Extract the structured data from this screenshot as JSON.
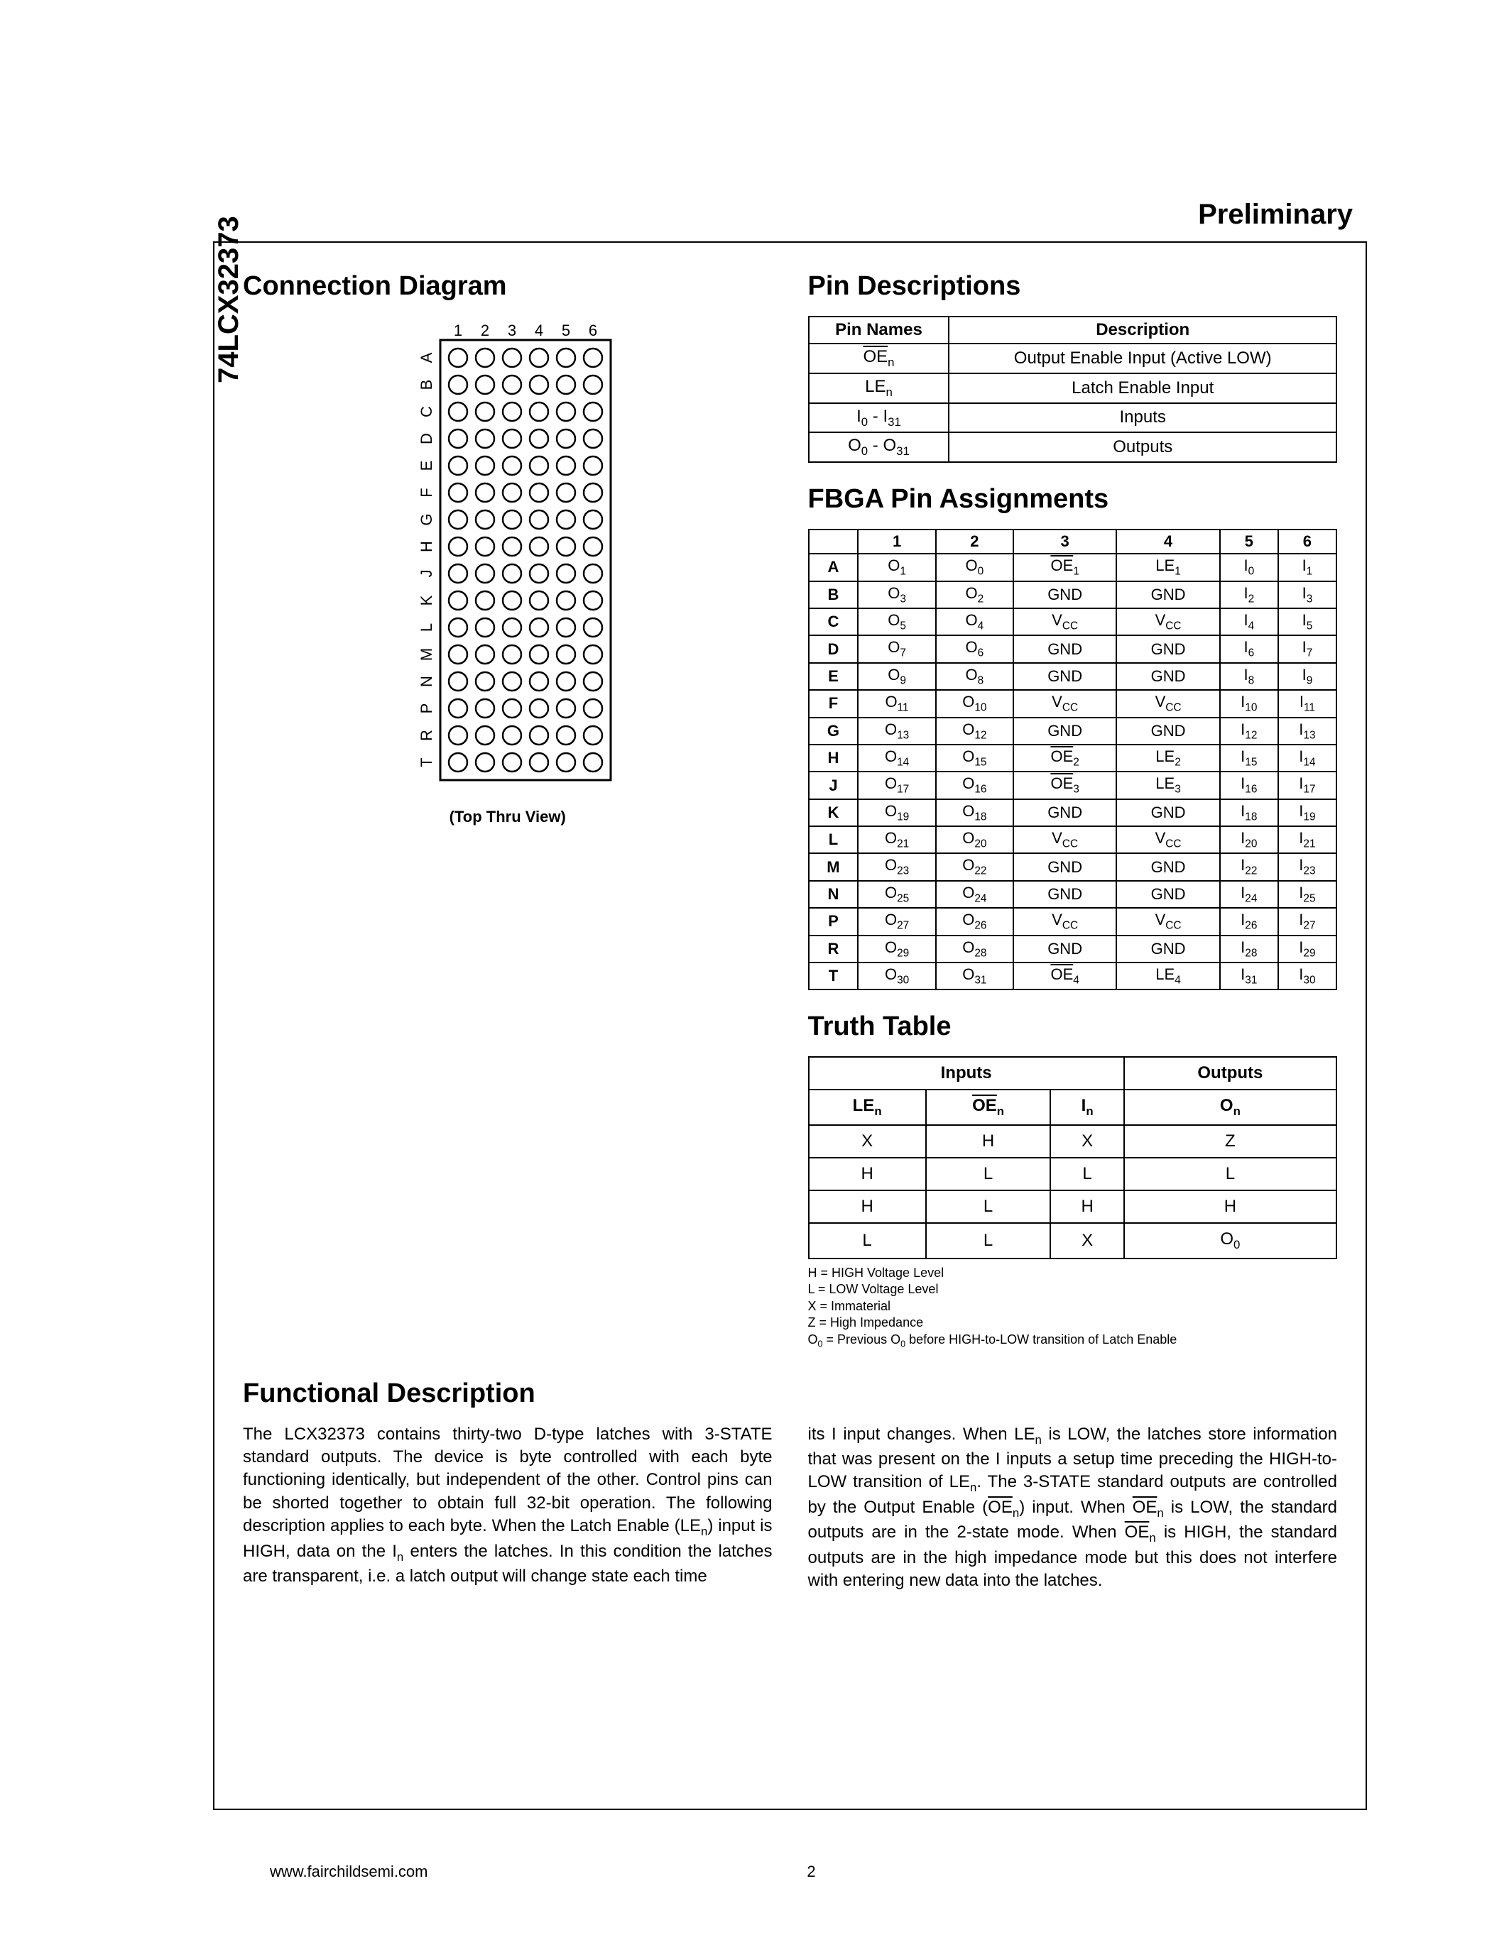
{
  "page": {
    "preliminary": "Preliminary",
    "part_number": "74LCX32373",
    "footer_url": "www.fairchildsemi.com",
    "page_number": "2"
  },
  "sections": {
    "connection": "Connection Diagram",
    "pin_desc": "Pin Descriptions",
    "fbga": "FBGA Pin Assignments",
    "truth": "Truth Table",
    "func": "Functional Description"
  },
  "connection_diagram": {
    "cols": [
      "1",
      "2",
      "3",
      "4",
      "5",
      "6"
    ],
    "rows": [
      "A",
      "B",
      "C",
      "D",
      "E",
      "F",
      "G",
      "H",
      "J",
      "K",
      "L",
      "M",
      "N",
      "P",
      "R",
      "T"
    ],
    "caption": "(Top Thru View)",
    "circle_radius": 13,
    "col_spacing": 38,
    "row_spacing": 38,
    "stroke_color": "#000000"
  },
  "pin_descriptions": {
    "headers": [
      "Pin Names",
      "Description"
    ],
    "rows": [
      {
        "name_html": "<span class='ovl'>OE</span><sub>n</sub>",
        "desc": "Output Enable Input (Active LOW)"
      },
      {
        "name_html": "LE<sub>n</sub>",
        "desc": "Latch Enable Input"
      },
      {
        "name_html": "I<sub>0</sub> - I<sub>31</sub>",
        "desc": "Inputs"
      },
      {
        "name_html": "O<sub>0</sub> - O<sub>31</sub>",
        "desc": "Outputs"
      }
    ]
  },
  "fbga": {
    "col_headers": [
      "",
      "1",
      "2",
      "3",
      "4",
      "5",
      "6"
    ],
    "rows": [
      {
        "r": "A",
        "c": [
          "O<sub>1</sub>",
          "O<sub>0</sub>",
          "<span class='ovl'>OE</span><sub>1</sub>",
          "LE<sub>1</sub>",
          "I<sub>0</sub>",
          "I<sub>1</sub>"
        ]
      },
      {
        "r": "B",
        "c": [
          "O<sub>3</sub>",
          "O<sub>2</sub>",
          "GND",
          "GND",
          "I<sub>2</sub>",
          "I<sub>3</sub>"
        ]
      },
      {
        "r": "C",
        "c": [
          "O<sub>5</sub>",
          "O<sub>4</sub>",
          "V<sub>CC</sub>",
          "V<sub>CC</sub>",
          "I<sub>4</sub>",
          "I<sub>5</sub>"
        ]
      },
      {
        "r": "D",
        "c": [
          "O<sub>7</sub>",
          "O<sub>6</sub>",
          "GND",
          "GND",
          "I<sub>6</sub>",
          "I<sub>7</sub>"
        ]
      },
      {
        "r": "E",
        "c": [
          "O<sub>9</sub>",
          "O<sub>8</sub>",
          "GND",
          "GND",
          "I<sub>8</sub>",
          "I<sub>9</sub>"
        ]
      },
      {
        "r": "F",
        "c": [
          "O<sub>11</sub>",
          "O<sub>10</sub>",
          "V<sub>CC</sub>",
          "V<sub>CC</sub>",
          "I<sub>10</sub>",
          "I<sub>11</sub>"
        ]
      },
      {
        "r": "G",
        "c": [
          "O<sub>13</sub>",
          "O<sub>12</sub>",
          "GND",
          "GND",
          "I<sub>12</sub>",
          "I<sub>13</sub>"
        ]
      },
      {
        "r": "H",
        "c": [
          "O<sub>14</sub>",
          "O<sub>15</sub>",
          "<span class='ovl'>OE</span><sub>2</sub>",
          "LE<sub>2</sub>",
          "I<sub>15</sub>",
          "I<sub>14</sub>"
        ]
      },
      {
        "r": "J",
        "c": [
          "O<sub>17</sub>",
          "O<sub>16</sub>",
          "<span class='ovl'>OE</span><sub>3</sub>",
          "LE<sub>3</sub>",
          "I<sub>16</sub>",
          "I<sub>17</sub>"
        ]
      },
      {
        "r": "K",
        "c": [
          "O<sub>19</sub>",
          "O<sub>18</sub>",
          "GND",
          "GND",
          "I<sub>18</sub>",
          "I<sub>19</sub>"
        ]
      },
      {
        "r": "L",
        "c": [
          "O<sub>21</sub>",
          "O<sub>20</sub>",
          "V<sub>CC</sub>",
          "V<sub>CC</sub>",
          "I<sub>20</sub>",
          "I<sub>21</sub>"
        ]
      },
      {
        "r": "M",
        "c": [
          "O<sub>23</sub>",
          "O<sub>22</sub>",
          "GND",
          "GND",
          "I<sub>22</sub>",
          "I<sub>23</sub>"
        ]
      },
      {
        "r": "N",
        "c": [
          "O<sub>25</sub>",
          "O<sub>24</sub>",
          "GND",
          "GND",
          "I<sub>24</sub>",
          "I<sub>25</sub>"
        ]
      },
      {
        "r": "P",
        "c": [
          "O<sub>27</sub>",
          "O<sub>26</sub>",
          "V<sub>CC</sub>",
          "V<sub>CC</sub>",
          "I<sub>26</sub>",
          "I<sub>27</sub>"
        ]
      },
      {
        "r": "R",
        "c": [
          "O<sub>29</sub>",
          "O<sub>28</sub>",
          "GND",
          "GND",
          "I<sub>28</sub>",
          "I<sub>29</sub>"
        ]
      },
      {
        "r": "T",
        "c": [
          "O<sub>30</sub>",
          "O<sub>31</sub>",
          "<span class='ovl'>OE</span><sub>4</sub>",
          "LE<sub>4</sub>",
          "I<sub>31</sub>",
          "I<sub>30</sub>"
        ]
      }
    ]
  },
  "truth_table": {
    "group_headers": [
      "Inputs",
      "Outputs"
    ],
    "col_headers": [
      "LE<sub>n</sub>",
      "<span class='ovl'>OE</span><sub>n</sub>",
      "I<sub>n</sub>",
      "O<sub>n</sub>"
    ],
    "rows": [
      [
        "X",
        "H",
        "X",
        "Z"
      ],
      [
        "H",
        "L",
        "L",
        "L"
      ],
      [
        "H",
        "L",
        "H",
        "H"
      ],
      [
        "L",
        "L",
        "X",
        "O<sub>0</sub>"
      ]
    ],
    "legend": [
      "H = HIGH Voltage Level",
      "L = LOW Voltage Level",
      "X = Immaterial",
      "Z = High Impedance",
      "O<sub>0</sub> = Previous O<sub>0</sub> before HIGH-to-LOW transition of Latch Enable"
    ]
  },
  "functional_description": {
    "col1": "The LCX32373 contains thirty-two D-type latches with 3-STATE standard outputs. The device is byte controlled with each byte functioning identically, but independent of the other. Control pins can be shorted together to obtain full 32-bit operation. The following description applies to each byte. When the Latch Enable (LE<sub>n</sub>) input is HIGH, data on the I<sub>n</sub> enters the latches. In this condition the latches are transparent, i.e. a latch output will change state each time",
    "col2": "its I input changes. When LE<sub>n</sub> is LOW, the latches store information that was present on the I inputs a setup time preceding the HIGH-to-LOW transition of LE<sub>n</sub>. The 3-STATE standard outputs are controlled by the Output Enable (<span class='ovl'>OE</span><sub>n</sub>) input. When <span class='ovl'>OE</span><sub>n</sub> is LOW, the standard outputs are in the 2-state mode. When <span class='ovl'>OE</span><sub>n</sub> is HIGH, the standard outputs are in the high impedance mode but this does not interfere with entering new data into the latches."
  }
}
